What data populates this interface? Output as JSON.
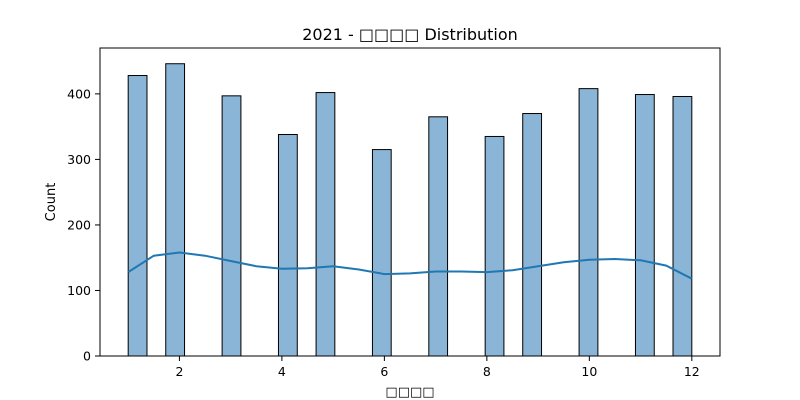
{
  "chart_data": {
    "type": "bar",
    "title": "2021 - □□□□ Distribution",
    "xlabel": "□□□□",
    "ylabel": "Count",
    "xlim": [
      0.45,
      12.55
    ],
    "ylim": [
      0,
      470
    ],
    "xticks": [
      2,
      4,
      6,
      8,
      10,
      12
    ],
    "yticks": [
      0,
      100,
      200,
      300,
      400
    ],
    "bins": [
      {
        "x0": 1.0,
        "x1": 1.367,
        "count": 428
      },
      {
        "x0": 1.733,
        "x1": 2.1,
        "count": 446
      },
      {
        "x0": 2.833,
        "x1": 3.2,
        "count": 397
      },
      {
        "x0": 3.933,
        "x1": 4.3,
        "count": 338
      },
      {
        "x0": 4.667,
        "x1": 5.033,
        "count": 402
      },
      {
        "x0": 5.767,
        "x1": 6.133,
        "count": 315
      },
      {
        "x0": 6.867,
        "x1": 7.233,
        "count": 365
      },
      {
        "x0": 7.967,
        "x1": 8.333,
        "count": 335
      },
      {
        "x0": 8.7,
        "x1": 9.067,
        "count": 370
      },
      {
        "x0": 9.8,
        "x1": 10.167,
        "count": 408
      },
      {
        "x0": 10.9,
        "x1": 11.267,
        "count": 399
      },
      {
        "x0": 11.633,
        "x1": 12.0,
        "count": 396
      }
    ],
    "kde": {
      "x": [
        1.0,
        1.5,
        2.0,
        2.5,
        3.0,
        3.5,
        4.0,
        4.5,
        5.0,
        5.5,
        6.0,
        6.5,
        7.0,
        7.5,
        8.0,
        8.5,
        9.0,
        9.5,
        10.0,
        10.5,
        11.0,
        11.5,
        12.0
      ],
      "y": [
        128,
        153,
        158,
        153,
        145,
        137,
        133,
        134,
        137,
        132,
        125,
        126,
        129,
        129,
        128,
        131,
        137,
        143,
        147,
        148,
        146,
        138,
        118
      ]
    },
    "bar_color": "#8bb5d6",
    "kde_color": "#1f77b4",
    "grid": false,
    "legend": "none"
  }
}
